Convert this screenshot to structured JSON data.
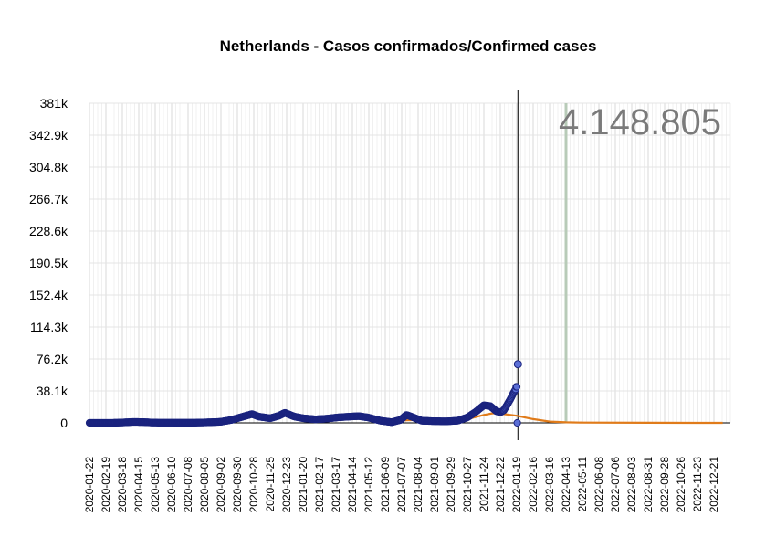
{
  "chart_data": {
    "type": "scatter",
    "title": "Netherlands - Casos confirmados/Confirmed cases",
    "xlabel": "",
    "ylabel": "",
    "annotation": "4.148.805",
    "colors": {
      "points_fill": "#5b6fd6",
      "points_stroke": "#1a237e",
      "trend": "#e07b1a",
      "marker_line": "#b8cbb8",
      "grid": "#e6e6e6"
    },
    "x_range": [
      "2020-01-22",
      "2023-01-18"
    ],
    "ylim": [
      0,
      381000
    ],
    "y_ticks": [
      0,
      38100,
      76200,
      114300,
      152400,
      190500,
      228600,
      266700,
      304800,
      342900,
      381000
    ],
    "y_tick_labels": [
      "0",
      "38.1k",
      "76.2k",
      "114.3k",
      "152.4k",
      "190.5k",
      "228.6k",
      "266.7k",
      "304.8k",
      "342.9k",
      "381k"
    ],
    "x_tick_labels": [
      "2020-01-22",
      "2020-02-19",
      "2020-03-18",
      "2020-04-15",
      "2020-05-13",
      "2020-06-10",
      "2020-07-08",
      "2020-08-05",
      "2020-09-02",
      "2020-09-30",
      "2020-10-28",
      "2020-11-25",
      "2020-12-23",
      "2021-01-20",
      "2021-02-17",
      "2021-03-17",
      "2021-04-14",
      "2021-05-12",
      "2021-06-09",
      "2021-07-07",
      "2021-08-04",
      "2021-09-01",
      "2021-09-29",
      "2021-10-27",
      "2021-11-24",
      "2021-12-22",
      "2022-01-19",
      "2022-02-16",
      "2022-03-16",
      "2022-04-13",
      "2022-05-11",
      "2022-06-08",
      "2022-07-06",
      "2022-08-03",
      "2022-08-31",
      "2022-09-28",
      "2022-10-26",
      "2022-11-23",
      "2022-12-21"
    ],
    "current_date": "2022-01-21",
    "marker_date": "2022-04-13",
    "series": [
      {
        "kind": "points",
        "points": [
          [
            "2020-01-22",
            0
          ],
          [
            "2020-03-01",
            0
          ],
          [
            "2020-03-20",
            500
          ],
          [
            "2020-04-05",
            1100
          ],
          [
            "2020-04-20",
            1000
          ],
          [
            "2020-05-10",
            300
          ],
          [
            "2020-06-15",
            150
          ],
          [
            "2020-07-15",
            150
          ],
          [
            "2020-08-10",
            600
          ],
          [
            "2020-09-01",
            1200
          ],
          [
            "2020-09-20",
            3500
          ],
          [
            "2020-10-10",
            7500
          ],
          [
            "2020-10-25",
            10500
          ],
          [
            "2020-11-05",
            7500
          ],
          [
            "2020-11-25",
            5500
          ],
          [
            "2020-12-10",
            8500
          ],
          [
            "2020-12-20",
            12000
          ],
          [
            "2021-01-05",
            7500
          ],
          [
            "2021-01-20",
            5500
          ],
          [
            "2021-02-10",
            4200
          ],
          [
            "2021-03-01",
            5000
          ],
          [
            "2021-03-20",
            6500
          ],
          [
            "2021-04-10",
            7500
          ],
          [
            "2021-04-25",
            8000
          ],
          [
            "2021-05-10",
            6500
          ],
          [
            "2021-06-01",
            2500
          ],
          [
            "2021-06-20",
            800
          ],
          [
            "2021-07-05",
            3500
          ],
          [
            "2021-07-15",
            9500
          ],
          [
            "2021-07-25",
            7000
          ],
          [
            "2021-08-10",
            2500
          ],
          [
            "2021-09-01",
            2000
          ],
          [
            "2021-09-20",
            1800
          ],
          [
            "2021-10-10",
            2500
          ],
          [
            "2021-10-27",
            6500
          ],
          [
            "2021-11-10",
            13000
          ],
          [
            "2021-11-24",
            21000
          ],
          [
            "2021-12-05",
            20000
          ],
          [
            "2021-12-15",
            14000
          ],
          [
            "2021-12-22",
            12500
          ],
          [
            "2021-12-28",
            15000
          ],
          [
            "2022-01-03",
            22000
          ],
          [
            "2022-01-08",
            28000
          ],
          [
            "2022-01-13",
            35000
          ],
          [
            "2022-01-17",
            40000
          ],
          [
            "2022-01-19",
            43000
          ],
          [
            "2022-01-20",
            0
          ],
          [
            "2022-01-21",
            70000
          ]
        ]
      },
      {
        "kind": "trend",
        "points": [
          [
            "2020-01-22",
            0
          ],
          [
            "2020-03-15",
            300
          ],
          [
            "2020-04-15",
            900
          ],
          [
            "2020-05-20",
            300
          ],
          [
            "2020-08-01",
            500
          ],
          [
            "2020-09-15",
            3000
          ],
          [
            "2020-10-28",
            8500
          ],
          [
            "2020-11-25",
            7000
          ],
          [
            "2020-12-23",
            9000
          ],
          [
            "2021-01-20",
            6500
          ],
          [
            "2021-02-17",
            5000
          ],
          [
            "2021-03-17",
            6000
          ],
          [
            "2021-04-14",
            7800
          ],
          [
            "2021-05-12",
            6500
          ],
          [
            "2021-06-09",
            2500
          ],
          [
            "2021-07-15",
            3000
          ],
          [
            "2021-08-04",
            3500
          ],
          [
            "2021-09-01",
            2500
          ],
          [
            "2021-09-29",
            2200
          ],
          [
            "2021-10-27",
            4500
          ],
          [
            "2021-11-24",
            9500
          ],
          [
            "2021-12-10",
            11500
          ],
          [
            "2021-12-22",
            11000
          ],
          [
            "2022-01-19",
            8500
          ],
          [
            "2022-02-16",
            4500
          ],
          [
            "2022-03-16",
            1500
          ],
          [
            "2022-04-13",
            600
          ],
          [
            "2022-05-11",
            300
          ],
          [
            "2022-08-31",
            150
          ],
          [
            "2023-01-05",
            50
          ]
        ]
      }
    ]
  }
}
